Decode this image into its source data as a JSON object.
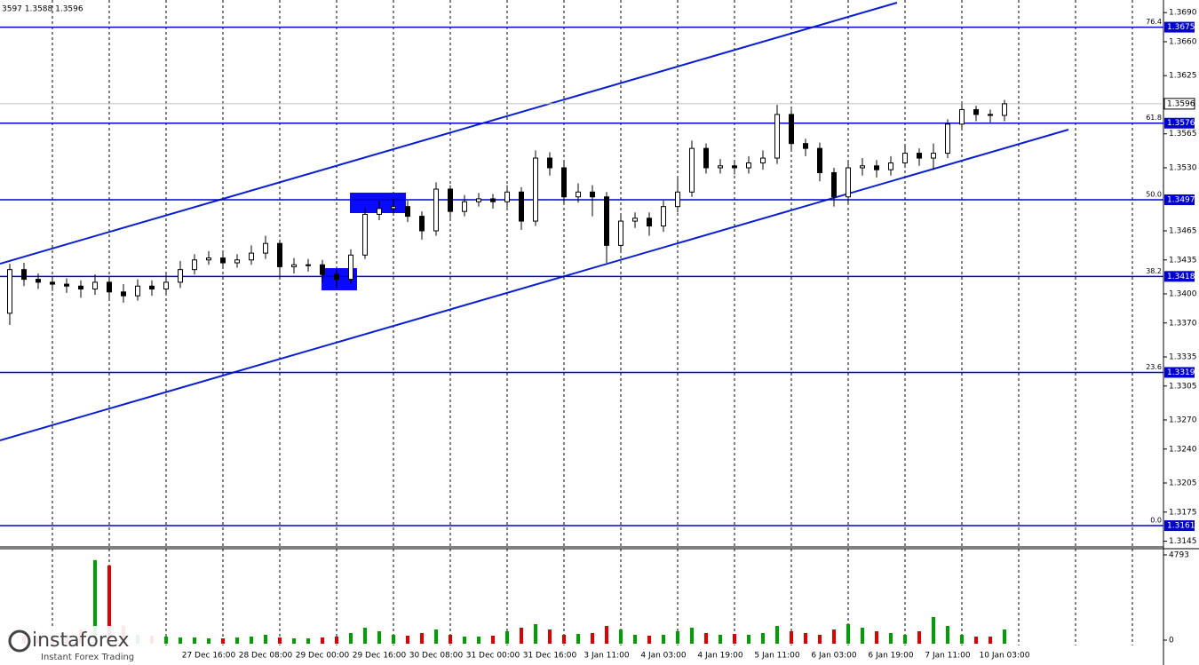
{
  "header": "3597 1.3588 1.3596",
  "watermark": {
    "brand": "instaforex",
    "tagline": "Instant Forex Trading"
  },
  "chart_data": [
    {
      "type": "candlestick",
      "categories": [
        null,
        null,
        null,
        null,
        null,
        null,
        null,
        null,
        null,
        null,
        null,
        null,
        null,
        null,
        "27 Dec 16:00",
        null,
        null,
        null,
        "28 Dec 08:00",
        null,
        null,
        null,
        "29 Dec 00:00",
        null,
        null,
        null,
        "29 Dec 16:00",
        null,
        null,
        null,
        "30 Dec 08:00",
        null,
        null,
        null,
        "31 Dec 00:00",
        null,
        null,
        null,
        "31 Dec 16:00",
        null,
        null,
        null,
        "3 Jan 11:00",
        null,
        null,
        null,
        "4 Jan 03:00",
        null,
        null,
        null,
        "4 Jan 19:00",
        null,
        null,
        null,
        "5 Jan 11:00",
        null,
        null,
        null,
        "6 Jan 03:00",
        null,
        null,
        null,
        "6 Jan 19:00",
        null,
        null,
        null,
        "7 Jan 11:00",
        null,
        null,
        null,
        "10 Jan 03:00"
      ],
      "open": [
        1.338,
        1.3425,
        1.3415,
        1.3412,
        1.341,
        1.3408,
        1.3405,
        1.3412,
        1.3402,
        1.3398,
        1.3408,
        1.3405,
        1.3412,
        1.3425,
        1.3435,
        1.3437,
        1.3432,
        1.3435,
        1.3442,
        1.3452,
        1.3428,
        1.343,
        1.343,
        1.342,
        1.3415,
        1.344,
        1.3482,
        1.3488,
        1.349,
        1.348,
        1.3465,
        1.3508,
        1.3485,
        1.3495,
        1.3498,
        1.3495,
        1.3505,
        1.3475,
        1.354,
        1.353,
        1.35,
        1.3505,
        1.35,
        1.345,
        1.3475,
        1.3478,
        1.347,
        1.349,
        1.3505,
        1.355,
        1.353,
        1.3532,
        1.353,
        1.3535,
        1.354,
        1.3585,
        1.3555,
        1.355,
        1.3525,
        1.35,
        1.353,
        1.3532,
        1.3528,
        1.3535,
        1.3545,
        1.354,
        1.3545,
        1.3575,
        1.359,
        1.3585,
        1.3584
      ],
      "high": [
        1.3431,
        1.3432,
        1.3421,
        1.3418,
        1.3416,
        1.3414,
        1.342,
        1.3418,
        1.341,
        1.3415,
        1.3414,
        1.342,
        1.3434,
        1.3441,
        1.3444,
        1.3442,
        1.3441,
        1.345,
        1.346,
        1.3456,
        1.3437,
        1.3436,
        1.3435,
        1.3425,
        1.3446,
        1.3488,
        1.3496,
        1.3498,
        1.3496,
        1.3485,
        1.3515,
        1.3512,
        1.3502,
        1.3504,
        1.3503,
        1.3512,
        1.351,
        1.3548,
        1.3546,
        1.3536,
        1.3514,
        1.3512,
        1.3505,
        1.3481,
        1.3484,
        1.3484,
        1.3496,
        1.352,
        1.3558,
        1.3555,
        1.3539,
        1.3538,
        1.3542,
        1.3548,
        1.3595,
        1.359,
        1.356,
        1.3556,
        1.353,
        1.3538,
        1.354,
        1.3538,
        1.3542,
        1.3552,
        1.355,
        1.3555,
        1.358,
        1.3596,
        1.3594,
        1.359,
        1.36
      ],
      "low": [
        1.3368,
        1.3408,
        1.3405,
        1.3403,
        1.3401,
        1.3396,
        1.3399,
        1.3395,
        1.3391,
        1.3393,
        1.3398,
        1.3399,
        1.3406,
        1.342,
        1.343,
        1.3426,
        1.3427,
        1.343,
        1.3436,
        1.3415,
        1.3421,
        1.3423,
        1.3412,
        1.3406,
        1.341,
        1.3436,
        1.3476,
        1.3482,
        1.3474,
        1.3456,
        1.346,
        1.3478,
        1.348,
        1.349,
        1.3488,
        1.3489,
        1.3466,
        1.347,
        1.3522,
        1.3493,
        1.3494,
        1.348,
        1.3432,
        1.3444,
        1.3468,
        1.346,
        1.3464,
        1.3484,
        1.35,
        1.3524,
        1.3524,
        1.3523,
        1.3524,
        1.3528,
        1.3534,
        1.3548,
        1.3542,
        1.3516,
        1.349,
        1.3494,
        1.3522,
        1.352,
        1.3522,
        1.353,
        1.3532,
        1.3528,
        1.354,
        1.357,
        1.3578,
        1.3576,
        1.3578
      ],
      "close": [
        1.3425,
        1.3415,
        1.3412,
        1.341,
        1.3408,
        1.3405,
        1.3412,
        1.3402,
        1.3398,
        1.3408,
        1.3405,
        1.3412,
        1.3425,
        1.3435,
        1.3437,
        1.3432,
        1.3435,
        1.3442,
        1.3452,
        1.3428,
        1.343,
        1.343,
        1.342,
        1.3415,
        1.344,
        1.3482,
        1.3488,
        1.349,
        1.348,
        1.3465,
        1.3508,
        1.3485,
        1.3495,
        1.3498,
        1.3495,
        1.3505,
        1.3475,
        1.354,
        1.353,
        1.35,
        1.3505,
        1.35,
        1.345,
        1.3475,
        1.3478,
        1.347,
        1.349,
        1.3505,
        1.355,
        1.353,
        1.3532,
        1.353,
        1.3535,
        1.354,
        1.3585,
        1.3555,
        1.355,
        1.3525,
        1.35,
        1.353,
        1.3532,
        1.3528,
        1.3535,
        1.3545,
        1.354,
        1.3545,
        1.3575,
        1.359,
        1.3585,
        1.3584,
        1.3596
      ],
      "color": "#000000",
      "up_color": "#ffffff",
      "down_color": "#000000",
      "ylim": [
        1.314,
        1.3703
      ],
      "yticks": [
        {
          "value": 1.369,
          "label": "1.3690"
        },
        {
          "value": 1.366,
          "label": "1.3660"
        },
        1.3625,
        1.3565,
        {
          "value": 1.353,
          "label": "1.3530"
        },
        1.3465,
        1.3435,
        {
          "value": 1.34,
          "label": "1.3400"
        },
        {
          "value": 1.337,
          "label": "1.3370"
        },
        1.3335,
        1.3305,
        {
          "value": 1.327,
          "label": "1.3270"
        },
        {
          "value": 1.324,
          "label": "1.3240"
        },
        1.3205,
        1.3175,
        1.3145
      ],
      "last_price": 1.3596,
      "fib_color": "#0000d0",
      "fib_levels": [
        {
          "level": "76.4",
          "price": 1.3675
        },
        {
          "level": "61.8",
          "price": 1.3576
        },
        {
          "level": "50.0",
          "price": 1.3497
        },
        {
          "level": "38.2",
          "price": 1.3418
        },
        {
          "level": "23.6",
          "price": 1.3319
        },
        {
          "level": "0.0",
          "price": 1.3161
        }
      ]
    },
    {
      "type": "bar",
      "values": [
        300,
        250,
        200,
        250,
        300,
        600,
        4500,
        4200,
        800,
        300,
        250,
        200,
        150,
        150,
        100,
        100,
        150,
        200,
        300,
        150,
        100,
        100,
        150,
        200,
        400,
        700,
        500,
        300,
        250,
        400,
        600,
        300,
        200,
        200,
        250,
        500,
        700,
        900,
        600,
        300,
        350,
        400,
        800,
        600,
        300,
        250,
        300,
        500,
        700,
        400,
        300,
        350,
        300,
        400,
        800,
        500,
        400,
        300,
        600,
        900,
        700,
        500,
        400,
        300,
        500,
        1300,
        800,
        300,
        200,
        200,
        600
      ],
      "up_color": "#00a000",
      "down_color": "#e00000",
      "ylim": [
        0,
        4793
      ],
      "yticks": [
        4793,
        0
      ]
    }
  ]
}
